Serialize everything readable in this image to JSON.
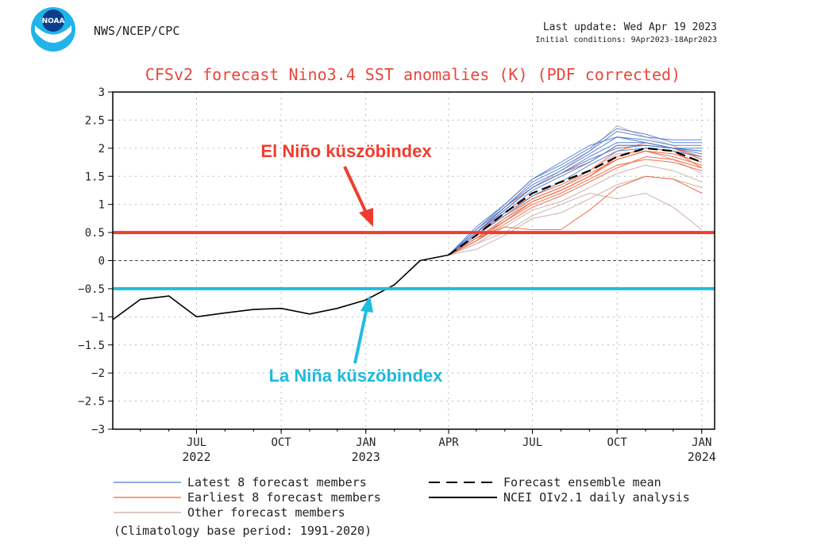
{
  "header": {
    "logo_text": "NOAA",
    "agency": "NWS/NCEP/CPC",
    "last_update": "Last update: Wed Apr 19 2023",
    "initial_conditions": "Initial conditions: 9Apr2023-18Apr2023"
  },
  "annotations": {
    "el_nino": "El Niño küszöbindex",
    "la_nina": "La Niña küszöbindex"
  },
  "legend": {
    "latest": "Latest 8 forecast members",
    "earliest": "Earliest 8 forecast members",
    "other": "Other forecast members",
    "ensemble_mean": "Forecast ensemble mean",
    "analysis": "NCEI OIv2.1 daily analysis",
    "climatology": "(Climatology base period: 1991-2020)"
  },
  "colors": {
    "title": "#e8473c",
    "latest": "#4a78d0",
    "earliest": "#f0603a",
    "other": "#c8aaa4",
    "el_nino_line": "#f03c2e",
    "la_nina_line": "#1fbde0",
    "el_nino_text": "#f03c2e",
    "la_nina_text": "#1fb8dc"
  },
  "chart_data": {
    "type": "line",
    "title": "CFSv2 forecast Nino3.4 SST anomalies (K) (PDF corrected)",
    "ylim": [
      -3,
      3
    ],
    "y_ticks": [
      3,
      2.5,
      2,
      1.5,
      1,
      0.5,
      0,
      -0.5,
      -1,
      -1.5,
      -2,
      -2.5,
      -3
    ],
    "y_tick_labels": [
      "3",
      "2.5",
      "2",
      "1.5",
      "1",
      "0.5",
      "0",
      "−0.5",
      "−1",
      "−1.5",
      "−2",
      "−2.5",
      "−3"
    ],
    "x_ticks": [
      {
        "date": "2022-07-01",
        "label": "JUL",
        "year": "2022"
      },
      {
        "date": "2022-10-01",
        "label": "OCT",
        "year": ""
      },
      {
        "date": "2023-01-01",
        "label": "JAN",
        "year": "2023"
      },
      {
        "date": "2023-04-01",
        "label": "APR",
        "year": ""
      },
      {
        "date": "2023-07-01",
        "label": "JUL",
        "year": ""
      },
      {
        "date": "2023-10-01",
        "label": "OCT",
        "year": ""
      },
      {
        "date": "2024-01-01",
        "label": "JAN",
        "year": "2024"
      }
    ],
    "xlim": [
      "2022-04-01",
      "2024-01-15"
    ],
    "grid": true,
    "thresholds": [
      {
        "name": "El Niño",
        "value": 0.5
      },
      {
        "name": "La Niña",
        "value": -0.5
      }
    ],
    "analysis": {
      "name": "NCEI OIv2.1 daily analysis",
      "x": [
        "2022-04-01",
        "2022-05-01",
        "2022-06-01",
        "2022-07-01",
        "2022-08-01",
        "2022-09-01",
        "2022-10-01",
        "2022-11-01",
        "2022-12-01",
        "2023-01-01",
        "2023-02-01",
        "2023-03-01",
        "2023-04-01"
      ],
      "y": [
        -1.05,
        -0.69,
        -0.63,
        -1.0,
        -0.93,
        -0.87,
        -0.85,
        -0.95,
        -0.85,
        -0.7,
        -0.43,
        0.0,
        0.1
      ]
    },
    "forecast_x": [
      "2023-04-01",
      "2023-05-01",
      "2023-06-01",
      "2023-07-01",
      "2023-08-01",
      "2023-09-01",
      "2023-10-01",
      "2023-11-01",
      "2023-12-01",
      "2024-01-01"
    ],
    "ensemble_mean": [
      0.1,
      0.45,
      0.85,
      1.2,
      1.4,
      1.6,
      1.85,
      2.0,
      1.95,
      1.75
    ],
    "series": [
      {
        "name": "Latest 8 forecast members",
        "group": "latest",
        "members": [
          [
            0.1,
            0.6,
            1.0,
            1.45,
            1.7,
            2.0,
            2.35,
            2.25,
            2.1,
            2.1
          ],
          [
            0.1,
            0.55,
            0.95,
            1.35,
            1.6,
            1.9,
            2.2,
            2.15,
            2.05,
            2.05
          ],
          [
            0.1,
            0.5,
            0.9,
            1.3,
            1.55,
            1.85,
            2.1,
            2.1,
            2.0,
            1.95
          ],
          [
            0.1,
            0.5,
            0.95,
            1.4,
            1.65,
            1.95,
            2.3,
            2.2,
            2.15,
            2.15
          ],
          [
            0.1,
            0.45,
            0.85,
            1.25,
            1.5,
            1.75,
            2.05,
            2.05,
            2.0,
            2.0
          ],
          [
            0.1,
            0.55,
            1.0,
            1.45,
            1.75,
            2.05,
            2.2,
            2.1,
            2.0,
            1.9
          ],
          [
            0.1,
            0.45,
            0.8,
            1.15,
            1.4,
            1.7,
            1.95,
            2.0,
            1.95,
            1.85
          ],
          [
            0.1,
            0.5,
            0.9,
            1.3,
            1.55,
            1.8,
            2.0,
            2.05,
            2.0,
            1.95
          ]
        ]
      },
      {
        "name": "Earliest 8 forecast members",
        "group": "earliest",
        "members": [
          [
            0.1,
            0.5,
            0.95,
            1.3,
            1.55,
            1.75,
            2.05,
            2.05,
            2.0,
            1.85
          ],
          [
            0.1,
            0.4,
            0.75,
            1.05,
            1.25,
            1.5,
            1.8,
            1.95,
            1.85,
            1.7
          ],
          [
            0.1,
            0.35,
            0.65,
            0.95,
            1.15,
            1.4,
            1.65,
            1.85,
            1.8,
            1.65
          ],
          [
            0.1,
            0.4,
            0.6,
            0.55,
            0.55,
            0.9,
            1.3,
            1.5,
            1.45,
            1.2
          ],
          [
            0.1,
            0.45,
            0.8,
            1.1,
            1.3,
            1.55,
            1.8,
            1.95,
            1.9,
            1.75
          ],
          [
            0.1,
            0.35,
            0.7,
            1.0,
            1.2,
            1.45,
            1.7,
            1.8,
            1.75,
            1.6
          ],
          [
            0.1,
            0.5,
            0.85,
            1.15,
            1.35,
            1.6,
            1.95,
            2.1,
            2.0,
            1.8
          ],
          [
            0.1,
            0.4,
            0.7,
            1.05,
            1.25,
            1.5,
            1.85,
            2.0,
            1.95,
            1.65
          ]
        ]
      },
      {
        "name": "Other forecast members",
        "group": "other",
        "members": [
          [
            0.1,
            0.3,
            0.5,
            0.8,
            1.0,
            1.2,
            1.1,
            1.2,
            0.95,
            0.55
          ],
          [
            0.1,
            0.2,
            0.45,
            0.75,
            0.85,
            1.1,
            1.35,
            1.5,
            1.45,
            1.3
          ],
          [
            0.1,
            0.45,
            0.9,
            1.3,
            1.6,
            1.95,
            2.4,
            2.2,
            2.05,
            1.8
          ],
          [
            0.1,
            0.35,
            0.75,
            1.1,
            1.3,
            1.6,
            1.9,
            1.95,
            1.8,
            1.55
          ],
          [
            0.1,
            0.3,
            0.6,
            0.9,
            1.05,
            1.3,
            1.55,
            1.7,
            1.6,
            1.4
          ]
        ]
      }
    ]
  }
}
